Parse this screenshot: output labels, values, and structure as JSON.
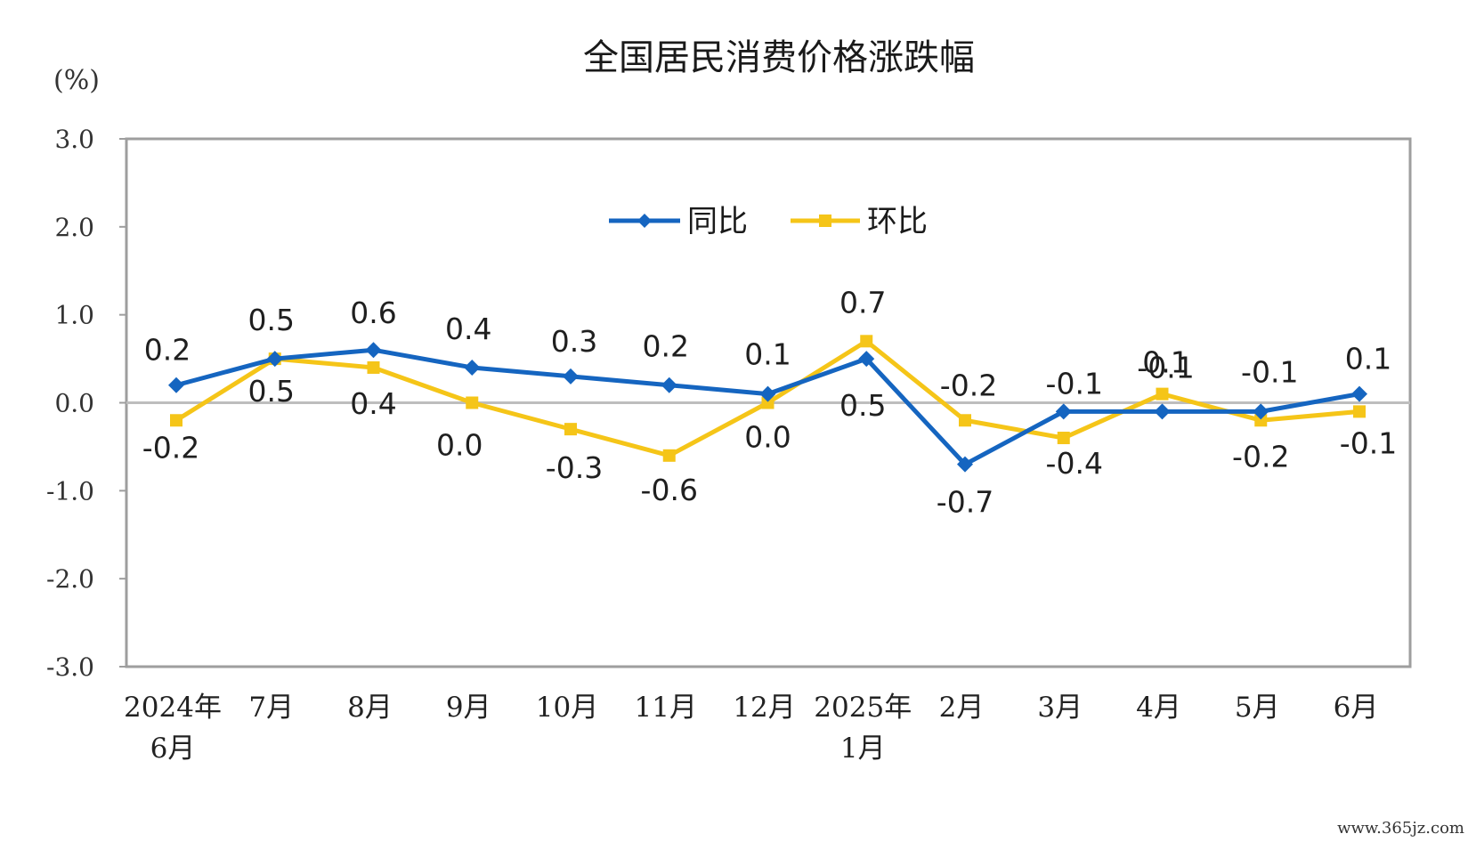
{
  "colors": {
    "series_yoy": "#1565C0",
    "series_mom": "#F5C518",
    "plot_border": "#9e9e9e",
    "zero_line": "#bdbdbd"
  },
  "watermark": "www.365jz.com",
  "chart_data": {
    "type": "line",
    "title": "全国居民消费价格涨跌幅",
    "unit": "(%)",
    "ylim": [
      -3.0,
      3.0
    ],
    "yticks": [
      "3.0",
      "2.0",
      "1.0",
      "0.0",
      "-1.0",
      "-2.0",
      "-3.0"
    ],
    "ytick_values": [
      3,
      2,
      1,
      0,
      -1,
      -2,
      -3
    ],
    "grid": false,
    "legend_position": "top-center",
    "categories": [
      [
        "2024年",
        "6月"
      ],
      [
        "7月"
      ],
      [
        "8月"
      ],
      [
        "9月"
      ],
      [
        "10月"
      ],
      [
        "11月"
      ],
      [
        "12月"
      ],
      [
        "2025年",
        "1月"
      ],
      [
        "2月"
      ],
      [
        "3月"
      ],
      [
        "4月"
      ],
      [
        "5月"
      ],
      [
        "6月"
      ]
    ],
    "series": [
      {
        "name": "同比",
        "marker": "diamond",
        "values": [
          0.2,
          0.5,
          0.6,
          0.4,
          0.3,
          0.2,
          0.1,
          0.5,
          -0.7,
          -0.1,
          -0.1,
          -0.1,
          0.1
        ],
        "labels": [
          "0.2",
          "0.5",
          "0.6",
          "0.4",
          "0.3",
          "0.2",
          "0.1",
          "0.5",
          "-0.7",
          "-0.1",
          "-0.1",
          "-0.1",
          "0.1"
        ]
      },
      {
        "name": "环比",
        "marker": "square",
        "values": [
          -0.2,
          0.5,
          0.4,
          0.0,
          -0.3,
          -0.6,
          0.0,
          0.7,
          -0.2,
          -0.4,
          0.1,
          -0.2,
          -0.1
        ],
        "labels": [
          "-0.2",
          "0.5",
          "0.4",
          "0.0",
          "-0.3",
          "-0.6",
          "0.0",
          "0.7",
          "-0.2",
          "-0.4",
          "0.1",
          "-0.2",
          "-0.1"
        ]
      }
    ]
  }
}
